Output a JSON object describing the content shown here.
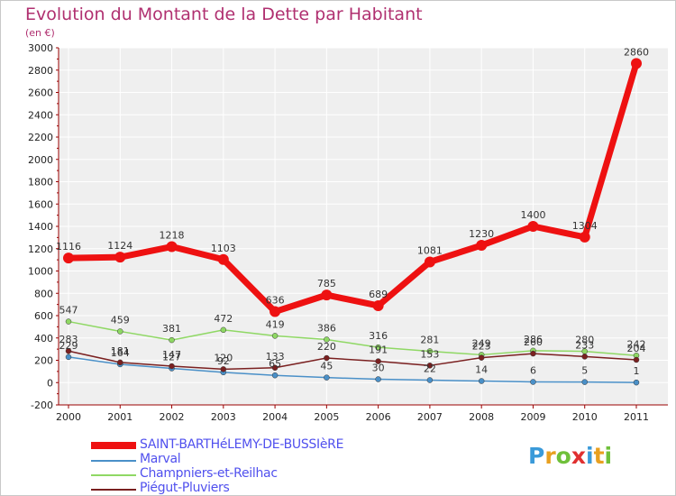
{
  "chart_title": "Evolution du Montant de la Dette par Habitant",
  "chart_unit": "(en €)",
  "logo": {
    "letters": [
      "P",
      "r",
      "o",
      "x",
      "i",
      "t",
      "i"
    ],
    "colors": [
      "#3a9ad9",
      "#e8a020",
      "#6fc03a",
      "#e03030",
      "#3a9ad9",
      "#e8a020",
      "#6fc03a"
    ]
  },
  "chart_data": {
    "type": "line",
    "x": [
      "2000",
      "2001",
      "2002",
      "2003",
      "2004",
      "2005",
      "2006",
      "2007",
      "2008",
      "2009",
      "2010",
      "2011"
    ],
    "ylim": [
      -200,
      3000
    ],
    "yticks": [
      "-200",
      "0",
      "200",
      "400",
      "600",
      "800",
      "1000",
      "1200",
      "1400",
      "1600",
      "1800",
      "2000",
      "2200",
      "2400",
      "2600",
      "2800",
      "3000"
    ],
    "grid": true,
    "legend_position": "bottom",
    "series": [
      {
        "name": "SAINT-BARTHéLEMY-DE-BUSSIèRE",
        "color": "#ee1111",
        "values": [
          1116,
          1124,
          1218,
          1103,
          636,
          785,
          689,
          1081,
          1230,
          1400,
          1304,
          2860
        ],
        "labels": [
          "1116",
          "1124",
          "1218",
          "1103",
          "636",
          "785",
          "689",
          "1081",
          "1230",
          "1400",
          "1304",
          "2860"
        ]
      },
      {
        "name": "Marval",
        "color": "#4a90c8",
        "values": [
          229,
          164,
          127,
          92,
          65,
          45,
          30,
          22,
          14,
          6,
          5,
          1
        ],
        "labels": [
          "229",
          "164",
          "127",
          "92",
          "65",
          "45",
          "30",
          "22",
          "14",
          "6",
          "5",
          "1"
        ]
      },
      {
        "name": "Champniers-et-Reilhac",
        "color": "#8fd864",
        "values": [
          547,
          459,
          381,
          472,
          419,
          386,
          316,
          281,
          249,
          286,
          280,
          242
        ],
        "labels": [
          "547",
          "459",
          "381",
          "472",
          "419",
          "386",
          "316",
          "281",
          "249",
          "286",
          "280",
          "242"
        ]
      },
      {
        "name": "Piégut-Pluviers",
        "color": "#7a2020",
        "values": [
          283,
          181,
          147,
          120,
          133,
          220,
          191,
          153,
          223,
          260,
          233,
          204
        ],
        "labels": [
          "283",
          "181",
          "147",
          "120",
          "133",
          "220",
          "191",
          "153",
          "223",
          "260",
          "233",
          "204"
        ]
      }
    ]
  }
}
